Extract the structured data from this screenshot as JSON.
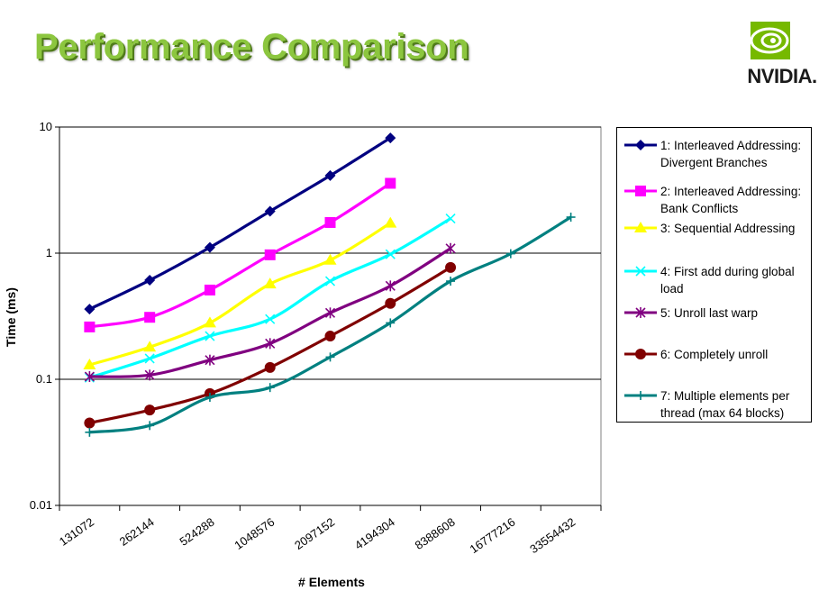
{
  "title": "Performance Comparison",
  "logo": {
    "text": "NVIDIA.",
    "icon": "nvidia-eye-icon",
    "color": "#76b900"
  },
  "chart_data": {
    "type": "line",
    "ylabel": "Time (ms)",
    "xlabel": "# Elements",
    "yscale": "log",
    "ylim": [
      0.01,
      10
    ],
    "yticks": [
      "10",
      "1",
      "0.1",
      "0.01"
    ],
    "ytick_values": [
      10,
      1,
      0.1,
      0.01
    ],
    "categories": [
      "131072",
      "262144",
      "524288",
      "1048576",
      "2097152",
      "4194304",
      "8388608",
      "16777216",
      "33554432"
    ],
    "grid": "horizontal major lines",
    "legend_position": "right",
    "series": [
      {
        "name": "1: Interleaved Addressing: Divergent Branches",
        "color": "#000080",
        "marker": "diamond",
        "values": [
          0.36,
          0.61,
          1.11,
          2.15,
          4.12,
          8.2,
          null,
          null,
          null
        ]
      },
      {
        "name": "2: Interleaved Addressing: Bank Conflicts",
        "color": "#ff00ff",
        "marker": "square",
        "values": [
          0.26,
          0.31,
          0.51,
          0.97,
          1.75,
          3.58,
          null,
          null,
          null
        ]
      },
      {
        "name": "3: Sequential Addressing",
        "color": "#ffff00",
        "marker": "triangle",
        "values": [
          0.13,
          0.18,
          0.28,
          0.57,
          0.88,
          1.73,
          null,
          null,
          null
        ]
      },
      {
        "name": "4: First add during global load",
        "color": "#00ffff",
        "marker": "x",
        "values": [
          0.103,
          0.146,
          0.22,
          0.3,
          0.6,
          0.98,
          1.88,
          null,
          null
        ]
      },
      {
        "name": "5: Unroll last warp",
        "color": "#800080",
        "marker": "asterisk",
        "values": [
          0.105,
          0.108,
          0.142,
          0.192,
          0.336,
          0.55,
          1.09,
          null,
          null
        ]
      },
      {
        "name": "6: Completely unroll",
        "color": "#800000",
        "marker": "circle",
        "values": [
          0.045,
          0.057,
          0.077,
          0.124,
          0.22,
          0.4,
          0.77,
          null,
          null
        ]
      },
      {
        "name": "7: Multiple elements per thread (max 64 blocks)",
        "color": "#008080",
        "marker": "plus",
        "values": [
          0.038,
          0.043,
          0.072,
          0.086,
          0.15,
          0.28,
          0.6,
          0.99,
          1.93
        ]
      }
    ]
  }
}
